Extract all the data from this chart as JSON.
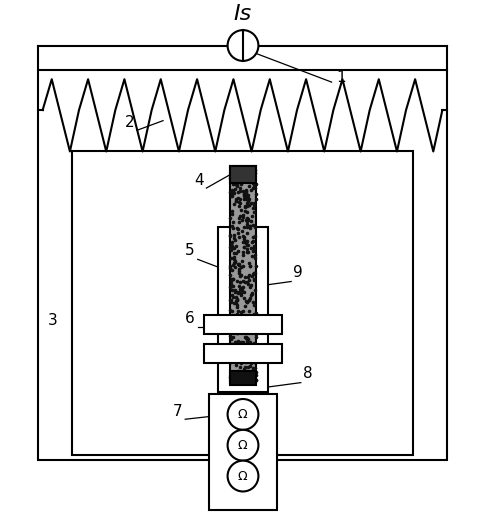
{
  "bg_color": "#ffffff",
  "line_color": "#000000",
  "fig_width": 4.86,
  "fig_height": 5.27,
  "dpi": 100
}
